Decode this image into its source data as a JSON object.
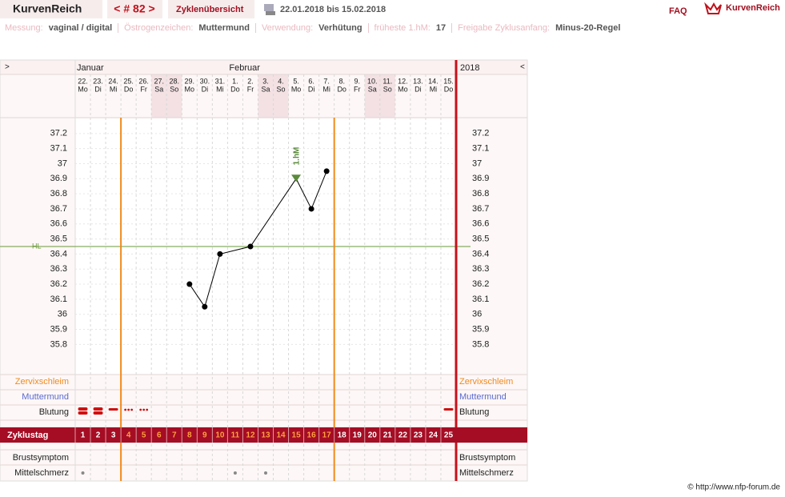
{
  "header": {
    "brand": "KurvenReich",
    "cycle_nav": "< # 82 >",
    "overview": "Zyklenübersicht",
    "date_range": "22.01.2018 bis 15.02.2018",
    "faq": "FAQ",
    "logo": "KurvenReich"
  },
  "info": [
    {
      "label": "Messung:",
      "value": "vaginal / digital"
    },
    {
      "label": "Östrogenzeichen:",
      "value": "Muttermund"
    },
    {
      "label": "Verwendung:",
      "value": "Verhütung"
    },
    {
      "label": "früheste 1.hM:",
      "value": "17"
    },
    {
      "label": "Freigabe Zyklusanfang:",
      "value": "Minus-20-Regel"
    }
  ],
  "chart_data": {
    "type": "line",
    "nav_left": ">",
    "nav_right": "<",
    "year": "2018",
    "months": [
      "Januar",
      "Februar"
    ],
    "categories": [
      "22.",
      "23.",
      "24.",
      "25.",
      "26.",
      "27.",
      "28.",
      "29.",
      "30.",
      "31.",
      "1.",
      "2.",
      "3.",
      "4.",
      "5.",
      "6.",
      "7.",
      "8.",
      "9.",
      "10.",
      "11.",
      "12.",
      "13.",
      "14.",
      "15."
    ],
    "weekdays": [
      "Mo",
      "Di",
      "Mi",
      "Do",
      "Fr",
      "Sa",
      "So",
      "Mo",
      "Di",
      "Mi",
      "Do",
      "Fr",
      "Sa",
      "So",
      "Mo",
      "Di",
      "Mi",
      "Do",
      "Fr",
      "Sa",
      "So",
      "Mo",
      "Di",
      "Mi",
      "Do"
    ],
    "ylim": [
      35.6,
      37.3
    ],
    "yticks": [
      37.2,
      37.1,
      37,
      36.9,
      36.8,
      36.7,
      36.6,
      36.5,
      36.4,
      36.3,
      36.2,
      36.1,
      36,
      35.9,
      35.8
    ],
    "hl": {
      "label": "HL",
      "value": 36.45,
      "color": "#6a9a3a"
    },
    "series": [
      {
        "color": "#000000",
        "x": [
          "29.",
          "30.",
          "31.",
          "2.",
          "5.",
          "6.",
          "7."
        ],
        "values": [
          36.2,
          36.05,
          36.4,
          36.45,
          36.9,
          36.7,
          36.95
        ]
      }
    ],
    "peak": {
      "label": "1.hM",
      "x": "5.",
      "color": "#5a8a3a"
    },
    "rows": [
      "Zervixschleim",
      "Muttermund",
      "Blutung",
      "Brustsymptom",
      "Mittelschmerz"
    ],
    "cycle_label": "Zyklustag",
    "cycle_days": [
      1,
      2,
      3,
      4,
      5,
      6,
      7,
      8,
      9,
      10,
      11,
      12,
      13,
      14,
      15,
      16,
      17,
      18,
      19,
      20,
      21,
      22,
      23,
      24,
      25
    ]
  },
  "footer": "© http://www.nfp-forum.de"
}
